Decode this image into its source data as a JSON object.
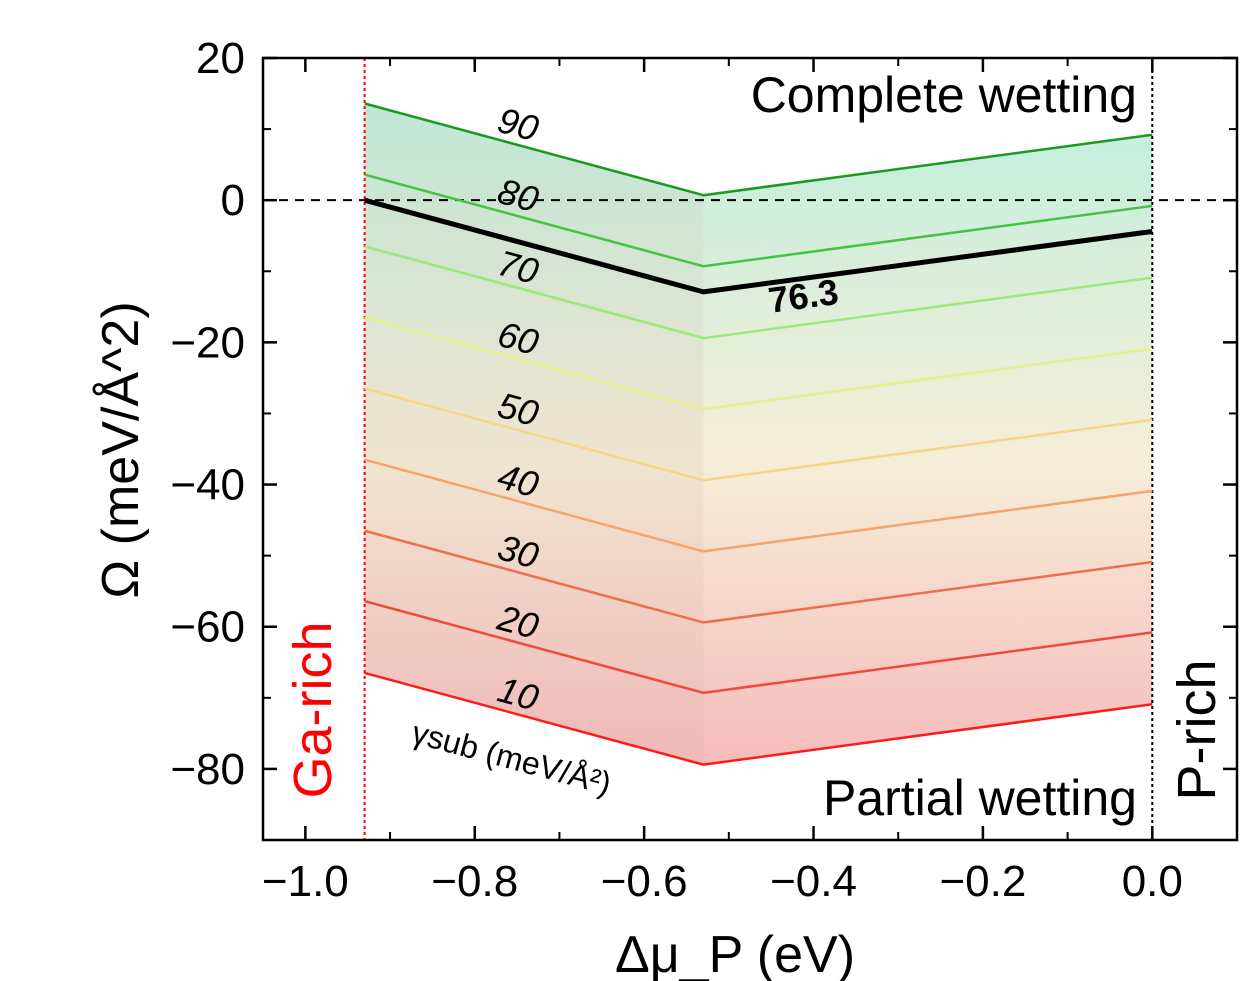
{
  "chart_data": {
    "type": "line",
    "xlabel": "Δμ_P (eV)",
    "ylabel": "Ω (meV/Å^2)",
    "xlim": [
      -1.05,
      0.1
    ],
    "ylim": [
      -90,
      20
    ],
    "xticks": [
      -1.0,
      -0.8,
      -0.6,
      -0.4,
      -0.2,
      0.0
    ],
    "yticks": [
      20,
      0,
      -20,
      -40,
      -60,
      -80
    ],
    "xtick_labels": [
      "−1.0",
      "−0.8",
      "−0.6",
      "−0.4",
      "−0.2",
      "0.0"
    ],
    "ytick_labels": [
      "20",
      "0",
      "−20",
      "−40",
      "−60",
      "−80"
    ],
    "x": [
      -0.93,
      -0.53,
      0.0
    ],
    "series": [
      {
        "name": "10",
        "values": [
          -66.5,
          -79.4,
          -70.9
        ],
        "color": "#ff1a1a"
      },
      {
        "name": "20",
        "values": [
          -56.4,
          -69.3,
          -60.8
        ],
        "color": "#f04a3c"
      },
      {
        "name": "30",
        "values": [
          -46.5,
          -59.4,
          -50.9
        ],
        "color": "#ec6f4f"
      },
      {
        "name": "40",
        "values": [
          -36.5,
          -49.4,
          -40.9
        ],
        "color": "#f3a56e"
      },
      {
        "name": "50",
        "values": [
          -26.5,
          -39.4,
          -30.9
        ],
        "color": "#f6d587"
      },
      {
        "name": "60",
        "values": [
          -16.5,
          -29.4,
          -20.9
        ],
        "color": "#e6ef8e"
      },
      {
        "name": "70",
        "values": [
          -6.5,
          -19.4,
          -10.9
        ],
        "color": "#9ce87a"
      },
      {
        "name": "80",
        "values": [
          3.6,
          -9.3,
          -0.8
        ],
        "color": "#45c341"
      },
      {
        "name": "90",
        "values": [
          13.6,
          0.7,
          9.2
        ],
        "color": "#199a1f"
      },
      {
        "name": "76.3",
        "values": [
          0.0,
          -12.9,
          -4.4
        ],
        "color": "#000000",
        "highlight": true
      }
    ],
    "reference_lines": {
      "horizontal_dashed_y": 0,
      "ga_rich_x": -0.93,
      "p_rich_x": 0.0
    },
    "annotations": {
      "complete_wetting": "Complete wetting",
      "partial_wetting": "Partial wetting",
      "ga_rich": "Ga-rich",
      "p_rich": "P-rich",
      "gamma_sub": "γsub (meV/Å²)"
    },
    "colors": {
      "ga_rich": "#ff0000",
      "p_rich": "#000000",
      "fill_top": "#b5ecd8",
      "fill_bottom": "#f4b0b0"
    },
    "grid": false,
    "legend": "none"
  }
}
